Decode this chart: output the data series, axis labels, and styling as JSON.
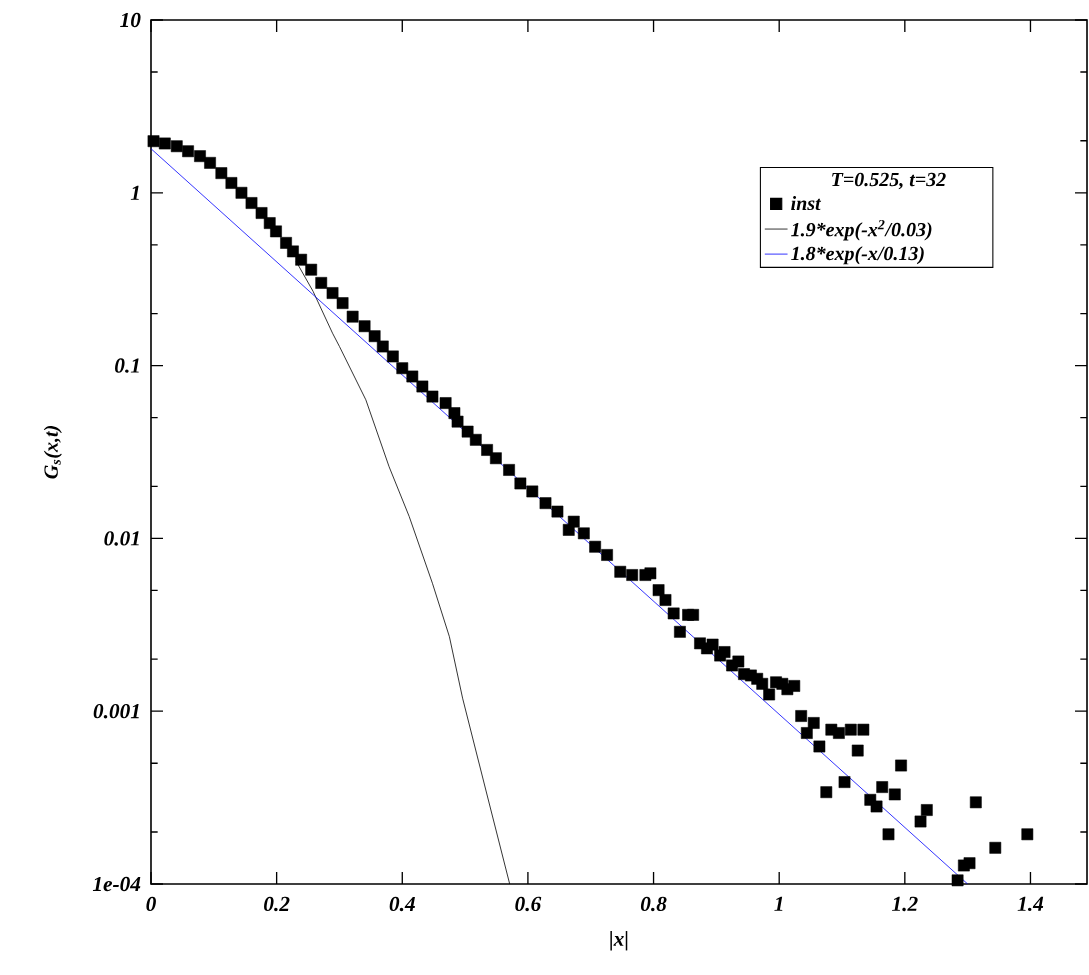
{
  "chart_data": {
    "type": "scatter",
    "xlabel": "|x|",
    "ylabel": "G$_{s}$(x,t)",
    "legend_title": "T=0.525, t=32",
    "xlim": [
      0,
      1.49
    ],
    "xticks": [
      0,
      0.2,
      0.4,
      0.6,
      0.8,
      1,
      1.2,
      1.4
    ],
    "ylim": [
      0.0001,
      10
    ],
    "yticks": [
      {
        "value": 0.0001,
        "label": "1e-04"
      },
      0.001,
      0.01,
      0.1,
      1,
      10
    ],
    "log": "y",
    "grid": false,
    "legend": "top right",
    "series": [
      {
        "name": "inst",
        "marker": "square",
        "color": "#000000",
        "x": [
          0.004,
          0.022,
          0.041,
          0.059,
          0.078,
          0.094,
          0.112,
          0.128,
          0.144,
          0.16,
          0.176,
          0.189,
          0.199,
          0.215,
          0.226,
          0.239,
          0.255,
          0.271,
          0.289,
          0.305,
          0.321,
          0.34,
          0.356,
          0.369,
          0.385,
          0.4,
          0.416,
          0.432,
          0.448,
          0.469,
          0.483,
          0.488,
          0.504,
          0.517,
          0.535,
          0.549,
          0.57,
          0.588,
          0.607,
          0.628,
          0.647,
          0.665,
          0.673,
          0.689,
          0.707,
          0.726,
          0.747,
          0.766,
          0.787,
          0.795,
          0.808,
          0.819,
          0.832,
          0.842,
          0.855,
          0.863,
          0.874,
          0.885,
          0.894,
          0.906,
          0.913,
          0.925,
          0.935,
          0.944,
          0.955,
          0.965,
          0.973,
          0.984,
          0.995,
          1.005,
          1.013,
          1.024,
          1.035,
          1.044,
          1.055,
          1.064,
          1.075,
          1.083,
          1.095,
          1.104,
          1.114,
          1.125,
          1.134,
          1.145,
          1.155,
          1.164,
          1.174,
          1.184,
          1.194,
          1.225,
          1.235,
          1.284,
          1.294,
          1.303,
          1.313,
          1.344,
          1.395
        ],
        "values": [
          1.99,
          1.93,
          1.86,
          1.74,
          1.63,
          1.49,
          1.3,
          1.14,
          1.0,
          0.873,
          0.764,
          0.668,
          0.598,
          0.513,
          0.458,
          0.41,
          0.359,
          0.301,
          0.263,
          0.23,
          0.192,
          0.169,
          0.148,
          0.129,
          0.113,
          0.0966,
          0.0865,
          0.0757,
          0.0662,
          0.0607,
          0.0531,
          0.0474,
          0.0415,
          0.0372,
          0.0325,
          0.0291,
          0.0249,
          0.0208,
          0.0187,
          0.016,
          0.0143,
          0.0112,
          0.0125,
          0.0107,
          0.00895,
          0.00802,
          0.00641,
          0.00614,
          0.00614,
          0.00628,
          0.00502,
          0.0044,
          0.00368,
          0.00288,
          0.00361,
          0.00361,
          0.00247,
          0.00231,
          0.00243,
          0.0021,
          0.0022,
          0.00184,
          0.00194,
          0.00164,
          0.00161,
          0.00154,
          0.00144,
          0.00125,
          0.00147,
          0.00144,
          0.00134,
          0.0014,
          0.000938,
          0.000748,
          0.000855,
          0.000625,
          0.00034,
          0.000782,
          0.000748,
          0.000389,
          0.000782,
          0.000592,
          0.000782,
          0.000307,
          0.000281,
          0.000364,
          0.000194,
          0.00033,
          0.000485,
          0.00023,
          0.000268,
          0.000105,
          0.000128,
          0.000132,
          0.000297,
          0.000162,
          0.000194
        ]
      },
      {
        "name": "1.9*exp(-x$^{2}$/0.03)",
        "type": "line",
        "marker": "none",
        "color": "#000000",
        "x": [
          0.231,
          0.258,
          0.289,
          0.3,
          0.342,
          0.379,
          0.411,
          0.448,
          0.475,
          0.496,
          0.533,
          0.571
        ],
        "values": [
          0.401,
          0.269,
          0.154,
          0.129,
          0.0634,
          0.026,
          0.0134,
          0.0055,
          0.0027,
          0.00119,
          0.00035,
          0.0001
        ]
      },
      {
        "name": "1.8*exp(-x/0.13)",
        "type": "line",
        "marker": "none",
        "color": "#0000ff",
        "x": [
          0,
          1.3
        ],
        "values": [
          1.8,
          0.0001
        ]
      }
    ]
  }
}
